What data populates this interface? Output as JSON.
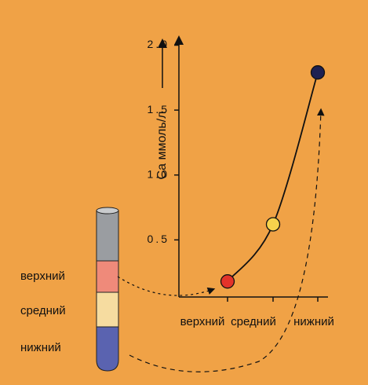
{
  "chart_data": {
    "type": "line",
    "y_label": "Ca  ммоль/л",
    "categories": [
      "верхний",
      "средний",
      "нижний"
    ],
    "values": [
      0.18,
      0.62,
      1.79
    ],
    "point_colors": [
      "#e3332a",
      "#f6d24c",
      "#1e2152"
    ],
    "line_color": "#111111",
    "ylim": [
      0.06,
      2.1
    ],
    "yticks": [
      0.5,
      {
        "value": 1,
        "label": "1.0"
      },
      1.5,
      {
        "value": 2,
        "label": "2.0"
      }
    ],
    "tube_labels": [
      "верхний",
      "средний",
      "нижний"
    ]
  }
}
